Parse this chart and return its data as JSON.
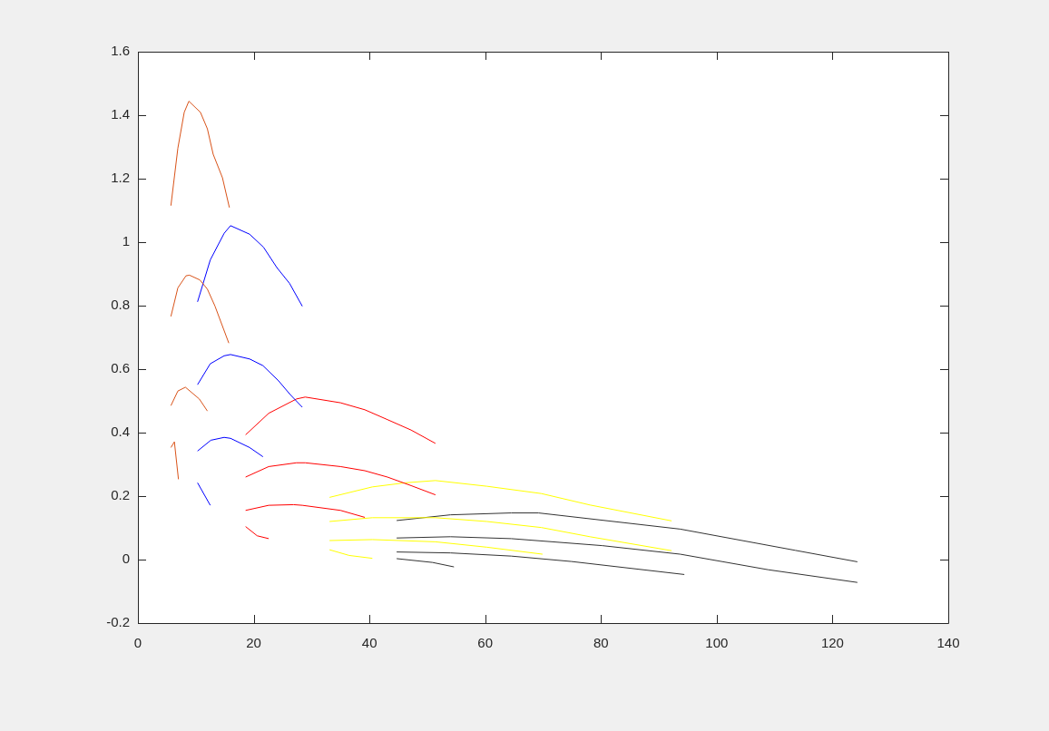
{
  "chart_data": {
    "type": "line",
    "xlim": [
      0,
      140
    ],
    "xticks": [
      0,
      20,
      40,
      60,
      80,
      100,
      120,
      140
    ],
    "ylim": [
      -0.2,
      1.6
    ],
    "yticks": [
      -0.2,
      0,
      0.2,
      0.4,
      0.6,
      0.8,
      1,
      1.2,
      1.4,
      1.6
    ],
    "grid": false,
    "legend": false,
    "series": [
      {
        "color": "#d95319",
        "x": [
          5.7,
          6.9,
          8.0,
          8.8,
          10.8,
          12.0,
          13.0,
          14.6,
          15.8
        ],
        "values": [
          1.115,
          1.296,
          1.409,
          1.444,
          1.409,
          1.357,
          1.277,
          1.203,
          1.109
        ]
      },
      {
        "color": "#d95319",
        "x": [
          5.7,
          6.9,
          8.3,
          8.9,
          10.7,
          12.0,
          13.3,
          15.7
        ],
        "values": [
          0.766,
          0.856,
          0.894,
          0.896,
          0.881,
          0.852,
          0.799,
          0.682
        ]
      },
      {
        "color": "#d95319",
        "x": [
          5.7,
          6.9,
          8.2,
          10.6,
          12.0
        ],
        "values": [
          0.485,
          0.531,
          0.543,
          0.506,
          0.468
        ]
      },
      {
        "color": "#d95319",
        "x": [
          5.7,
          6.3,
          7.0
        ],
        "values": [
          0.353,
          0.371,
          0.253
        ]
      },
      {
        "color": "#0000ff",
        "x": [
          10.3,
          12.5,
          14.9,
          16.0,
          19.3,
          21.7,
          24.0,
          26.2,
          28.4
        ],
        "values": [
          0.812,
          0.944,
          1.028,
          1.052,
          1.025,
          0.984,
          0.92,
          0.87,
          0.798
        ]
      },
      {
        "color": "#0000ff",
        "x": [
          10.3,
          12.5,
          14.9,
          16.0,
          19.3,
          21.6,
          24.3,
          26.3,
          28.4
        ],
        "values": [
          0.551,
          0.617,
          0.642,
          0.646,
          0.632,
          0.611,
          0.563,
          0.52,
          0.48
        ]
      },
      {
        "color": "#0000ff",
        "x": [
          10.3,
          12.6,
          14.9,
          16.0,
          19.3,
          21.6
        ],
        "values": [
          0.342,
          0.376,
          0.385,
          0.382,
          0.353,
          0.324
        ]
      },
      {
        "color": "#0000ff",
        "x": [
          10.3,
          12.5
        ],
        "values": [
          0.242,
          0.171
        ]
      },
      {
        "color": "#ff0000",
        "x": [
          18.6,
          22.6,
          27.4,
          28.9,
          35.0,
          39.2,
          43.1,
          47.2,
          51.4
        ],
        "values": [
          0.393,
          0.461,
          0.506,
          0.512,
          0.494,
          0.472,
          0.441,
          0.408,
          0.366
        ]
      },
      {
        "color": "#ff0000",
        "x": [
          18.6,
          22.6,
          27.4,
          28.9,
          35.0,
          39.2,
          43.1,
          47.2,
          51.4
        ],
        "values": [
          0.26,
          0.293,
          0.305,
          0.305,
          0.293,
          0.28,
          0.26,
          0.233,
          0.204
        ]
      },
      {
        "color": "#ff0000",
        "x": [
          18.6,
          22.6,
          26.9,
          28.4,
          35.0,
          39.2
        ],
        "values": [
          0.155,
          0.171,
          0.173,
          0.171,
          0.155,
          0.133
        ]
      },
      {
        "color": "#ff0000",
        "x": [
          18.6,
          20.6,
          22.6
        ],
        "values": [
          0.104,
          0.075,
          0.066
        ]
      },
      {
        "color": "#ffff00",
        "x": [
          33.1,
          40.5,
          46.2,
          51.4,
          60.3,
          69.7,
          78.1,
          92.2
        ],
        "values": [
          0.196,
          0.229,
          0.242,
          0.249,
          0.231,
          0.208,
          0.172,
          0.122
        ]
      },
      {
        "color": "#ffff00",
        "x": [
          33.1,
          40.5,
          51.4,
          60.3,
          69.7,
          78.1,
          92.2
        ],
        "values": [
          0.12,
          0.132,
          0.132,
          0.12,
          0.101,
          0.072,
          0.028
        ]
      },
      {
        "color": "#ffff00",
        "x": [
          33.1,
          40.5,
          51.4,
          60.3,
          69.9
        ],
        "values": [
          0.06,
          0.063,
          0.056,
          0.039,
          0.017
        ]
      },
      {
        "color": "#ffff00",
        "x": [
          33.1,
          36.5,
          40.5
        ],
        "values": [
          0.031,
          0.013,
          0.004
        ]
      },
      {
        "color": "#333333",
        "x": [
          44.7,
          54.0,
          64.5,
          69.2,
          93.7,
          113.6,
          124.3
        ],
        "values": [
          0.123,
          0.141,
          0.147,
          0.147,
          0.096,
          0.029,
          -0.007
        ]
      },
      {
        "color": "#333333",
        "x": [
          44.7,
          54.0,
          64.5,
          80.2,
          93.7,
          108.9,
          124.3
        ],
        "values": [
          0.068,
          0.072,
          0.066,
          0.044,
          0.017,
          -0.032,
          -0.072
        ]
      },
      {
        "color": "#333333",
        "x": [
          44.7,
          54.0,
          64.5,
          74.9,
          94.4
        ],
        "values": [
          0.024,
          0.021,
          0.011,
          -0.006,
          -0.047
        ]
      },
      {
        "color": "#333333",
        "x": [
          44.7,
          50.9,
          54.6
        ],
        "values": [
          0.003,
          -0.009,
          -0.023
        ]
      }
    ]
  }
}
